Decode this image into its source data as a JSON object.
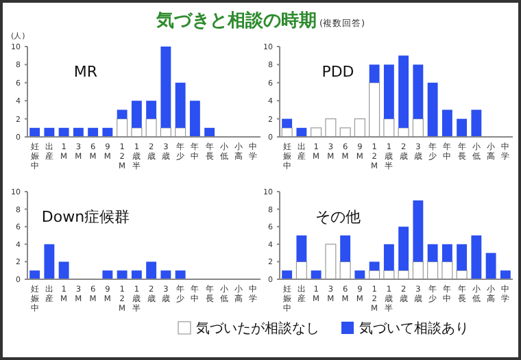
{
  "chart_data": [
    {
      "type": "other",
      "title": "気づきと相談の時期",
      "subtitle": "(複数回答)"
    },
    {
      "type": "bar",
      "ylabel": "(人)",
      "annotations": [
        "MR"
      ],
      "stacked": true,
      "legend": false,
      "categories": [
        "妊娠中",
        "出産",
        "1M",
        "3M",
        "6M",
        "9M",
        "12M",
        "1歳半",
        "2歳",
        "3歳",
        "年少",
        "年中",
        "年長",
        "小低",
        "小高",
        "中学"
      ],
      "series": [
        {
          "color": "#ffffff",
          "values": [
            0,
            0,
            0,
            0,
            0,
            0,
            2,
            1,
            2,
            1,
            1,
            0,
            0,
            0,
            0,
            0
          ]
        },
        {
          "color": "#2b4ff0",
          "values": [
            1,
            1,
            1,
            1,
            1,
            1,
            1,
            3,
            2,
            9,
            5,
            4,
            1,
            0,
            0,
            0
          ]
        }
      ],
      "ylim": [
        0,
        10
      ],
      "yticks": [
        0,
        2,
        4,
        6,
        8,
        10
      ]
    },
    {
      "type": "bar",
      "annotations": [
        "PDD"
      ],
      "stacked": true,
      "legend": false,
      "categories": [
        "妊娠中",
        "出産",
        "1M",
        "3M",
        "6M",
        "9M",
        "12M",
        "1歳半",
        "2歳",
        "3歳",
        "年少",
        "年中",
        "年長",
        "小低",
        "小高",
        "中学"
      ],
      "series": [
        {
          "color": "#ffffff",
          "values": [
            1,
            0,
            1,
            2,
            1,
            2,
            6,
            2,
            1,
            2,
            0,
            0,
            0,
            0,
            0,
            0
          ]
        },
        {
          "color": "#2b4ff0",
          "values": [
            1,
            1,
            0,
            0,
            0,
            0,
            2,
            6,
            8,
            6,
            6,
            3,
            2,
            3,
            0,
            0
          ]
        }
      ],
      "ylim": [
        0,
        10
      ],
      "yticks": [
        0,
        2,
        4,
        6,
        8,
        10
      ]
    },
    {
      "type": "bar",
      "annotations": [
        "Down症候群"
      ],
      "stacked": true,
      "legend": false,
      "categories": [
        "妊娠中",
        "出産",
        "1M",
        "3M",
        "6M",
        "9M",
        "12M",
        "1歳半",
        "2歳",
        "3歳",
        "年少",
        "年中",
        "年長",
        "小低",
        "小高",
        "中学"
      ],
      "series": [
        {
          "color": "#ffffff",
          "values": [
            0,
            0,
            0,
            0,
            0,
            0,
            0,
            0,
            0,
            0,
            0,
            0,
            0,
            0,
            0,
            0
          ]
        },
        {
          "color": "#2b4ff0",
          "values": [
            1,
            4,
            2,
            0,
            0,
            1,
            1,
            1,
            2,
            1,
            1,
            0,
            0,
            0,
            0,
            0
          ]
        }
      ],
      "ylim": [
        0,
        10
      ],
      "yticks": [
        0,
        2,
        4,
        6,
        8,
        10
      ]
    },
    {
      "type": "bar",
      "annotations": [
        "その他"
      ],
      "stacked": true,
      "legend": "bottom",
      "categories": [
        "妊娠中",
        "出産",
        "1M",
        "3M",
        "6M",
        "9M",
        "12M",
        "1歳半",
        "2歳",
        "3歳",
        "年少",
        "年中",
        "年長",
        "小低",
        "小高",
        "中学"
      ],
      "series": [
        {
          "name": "気づいたが相談なし",
          "color": "#ffffff",
          "values": [
            0,
            2,
            0,
            4,
            2,
            0,
            1,
            1,
            1,
            2,
            2,
            2,
            1,
            0,
            0,
            0
          ]
        },
        {
          "name": "気づいて相談あり",
          "color": "#2b4ff0",
          "values": [
            1,
            3,
            1,
            0,
            3,
            1,
            1,
            3,
            5,
            7,
            2,
            2,
            3,
            5,
            3,
            1
          ]
        }
      ],
      "ylim": [
        0,
        10
      ],
      "yticks": [
        0,
        2,
        4,
        6,
        8,
        10
      ]
    }
  ]
}
